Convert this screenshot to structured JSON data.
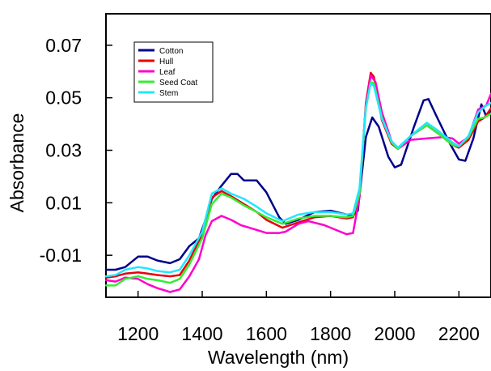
{
  "chart_data": {
    "type": "line",
    "xlabel": "Wavelength (nm)",
    "ylabel": "Absorbance",
    "xlim": [
      1100,
      2300
    ],
    "ylim": [
      -0.026,
      0.082
    ],
    "x_ticks": [
      1200,
      1400,
      1600,
      1800,
      2000,
      2200
    ],
    "x_tick_labels": [
      "1200",
      "1400",
      "1600",
      "1800",
      "2000",
      "2200"
    ],
    "y_ticks": [
      -0.01,
      0.01,
      0.03,
      0.05,
      0.07
    ],
    "y_tick_labels": [
      "-0.01",
      "0.01",
      "0.03",
      "0.05",
      "0.07"
    ],
    "grid": false,
    "legend_position": "top-left",
    "series": [
      {
        "name": "Cotton",
        "color": "#00008b",
        "points": [
          [
            1100,
            -0.0155
          ],
          [
            1130,
            -0.0155
          ],
          [
            1160,
            -0.0145
          ],
          [
            1200,
            -0.0105
          ],
          [
            1230,
            -0.0105
          ],
          [
            1260,
            -0.012
          ],
          [
            1300,
            -0.013
          ],
          [
            1330,
            -0.0115
          ],
          [
            1360,
            -0.0065
          ],
          [
            1390,
            -0.0035
          ],
          [
            1410,
            0.0035
          ],
          [
            1430,
            0.0115
          ],
          [
            1460,
            0.0165
          ],
          [
            1490,
            0.021
          ],
          [
            1510,
            0.021
          ],
          [
            1530,
            0.0185
          ],
          [
            1570,
            0.0185
          ],
          [
            1600,
            0.014
          ],
          [
            1640,
            0.0045
          ],
          [
            1660,
            0.002
          ],
          [
            1700,
            0.0035
          ],
          [
            1750,
            0.0065
          ],
          [
            1800,
            0.007
          ],
          [
            1850,
            0.0055
          ],
          [
            1870,
            0.005
          ],
          [
            1885,
            0.007
          ],
          [
            1895,
            0.018
          ],
          [
            1910,
            0.035
          ],
          [
            1930,
            0.0425
          ],
          [
            1950,
            0.039
          ],
          [
            1980,
            0.0275
          ],
          [
            2000,
            0.0235
          ],
          [
            2020,
            0.0245
          ],
          [
            2060,
            0.039
          ],
          [
            2090,
            0.049
          ],
          [
            2105,
            0.0495
          ],
          [
            2130,
            0.043
          ],
          [
            2170,
            0.033
          ],
          [
            2200,
            0.0265
          ],
          [
            2220,
            0.026
          ],
          [
            2245,
            0.0345
          ],
          [
            2270,
            0.0475
          ],
          [
            2285,
            0.043
          ],
          [
            2300,
            0.045
          ]
        ]
      },
      {
        "name": "Hull",
        "color": "#e8000b",
        "points": [
          [
            1100,
            -0.0185
          ],
          [
            1130,
            -0.018
          ],
          [
            1160,
            -0.017
          ],
          [
            1200,
            -0.0165
          ],
          [
            1230,
            -0.017
          ],
          [
            1260,
            -0.0175
          ],
          [
            1300,
            -0.018
          ],
          [
            1330,
            -0.0175
          ],
          [
            1360,
            -0.012
          ],
          [
            1400,
            -0.002
          ],
          [
            1430,
            0.012
          ],
          [
            1460,
            0.0145
          ],
          [
            1490,
            0.0125
          ],
          [
            1530,
            0.0095
          ],
          [
            1570,
            0.0065
          ],
          [
            1600,
            0.0035
          ],
          [
            1650,
            0.0005
          ],
          [
            1700,
            0.0025
          ],
          [
            1750,
            0.0045
          ],
          [
            1800,
            0.005
          ],
          [
            1850,
            0.004
          ],
          [
            1870,
            0.0045
          ],
          [
            1890,
            0.0125
          ],
          [
            1910,
            0.048
          ],
          [
            1925,
            0.0595
          ],
          [
            1935,
            0.058
          ],
          [
            1960,
            0.0415
          ],
          [
            1990,
            0.0325
          ],
          [
            2010,
            0.0305
          ],
          [
            2050,
            0.0355
          ],
          [
            2100,
            0.0395
          ],
          [
            2140,
            0.036
          ],
          [
            2180,
            0.032
          ],
          [
            2200,
            0.031
          ],
          [
            2230,
            0.034
          ],
          [
            2260,
            0.041
          ],
          [
            2280,
            0.0425
          ],
          [
            2300,
            0.046
          ]
        ]
      },
      {
        "name": "Leaf",
        "color": "#ff00cc",
        "points": [
          [
            1100,
            -0.0195
          ],
          [
            1130,
            -0.02
          ],
          [
            1160,
            -0.0185
          ],
          [
            1200,
            -0.019
          ],
          [
            1230,
            -0.021
          ],
          [
            1260,
            -0.0225
          ],
          [
            1300,
            -0.024
          ],
          [
            1330,
            -0.023
          ],
          [
            1360,
            -0.018
          ],
          [
            1390,
            -0.0115
          ],
          [
            1410,
            -0.0025
          ],
          [
            1430,
            0.003
          ],
          [
            1460,
            0.005
          ],
          [
            1490,
            0.0035
          ],
          [
            1520,
            0.0015
          ],
          [
            1560,
            0.0
          ],
          [
            1600,
            -0.0015
          ],
          [
            1640,
            -0.0015
          ],
          [
            1660,
            -0.001
          ],
          [
            1700,
            0.002
          ],
          [
            1730,
            0.003
          ],
          [
            1780,
            0.0015
          ],
          [
            1820,
            -0.0005
          ],
          [
            1850,
            -0.002
          ],
          [
            1870,
            -0.0015
          ],
          [
            1890,
            0.012
          ],
          [
            1910,
            0.047
          ],
          [
            1925,
            0.0585
          ],
          [
            1940,
            0.056
          ],
          [
            1960,
            0.0445
          ],
          [
            1990,
            0.0335
          ],
          [
            2010,
            0.0305
          ],
          [
            2050,
            0.034
          ],
          [
            2100,
            0.0345
          ],
          [
            2150,
            0.035
          ],
          [
            2180,
            0.0345
          ],
          [
            2200,
            0.0325
          ],
          [
            2230,
            0.035
          ],
          [
            2260,
            0.0455
          ],
          [
            2285,
            0.047
          ],
          [
            2300,
            0.0515
          ]
        ]
      },
      {
        "name": "Seed Coat",
        "color": "#33ee33",
        "points": [
          [
            1100,
            -0.0215
          ],
          [
            1130,
            -0.0215
          ],
          [
            1160,
            -0.019
          ],
          [
            1200,
            -0.018
          ],
          [
            1230,
            -0.019
          ],
          [
            1260,
            -0.0195
          ],
          [
            1300,
            -0.0205
          ],
          [
            1330,
            -0.019
          ],
          [
            1360,
            -0.0135
          ],
          [
            1400,
            -0.0035
          ],
          [
            1430,
            0.0095
          ],
          [
            1460,
            0.0135
          ],
          [
            1490,
            0.012
          ],
          [
            1530,
            0.009
          ],
          [
            1570,
            0.0065
          ],
          [
            1600,
            0.0045
          ],
          [
            1650,
            0.002
          ],
          [
            1700,
            0.004
          ],
          [
            1750,
            0.005
          ],
          [
            1800,
            0.005
          ],
          [
            1850,
            0.0045
          ],
          [
            1870,
            0.005
          ],
          [
            1890,
            0.0135
          ],
          [
            1910,
            0.046
          ],
          [
            1925,
            0.056
          ],
          [
            1935,
            0.0555
          ],
          [
            1960,
            0.0425
          ],
          [
            1990,
            0.033
          ],
          [
            2010,
            0.0305
          ],
          [
            2050,
            0.0355
          ],
          [
            2100,
            0.0395
          ],
          [
            2140,
            0.036
          ],
          [
            2180,
            0.032
          ],
          [
            2200,
            0.0315
          ],
          [
            2230,
            0.035
          ],
          [
            2260,
            0.042
          ],
          [
            2280,
            0.0425
          ],
          [
            2300,
            0.044
          ]
        ]
      },
      {
        "name": "Stem",
        "color": "#22e6ff",
        "points": [
          [
            1100,
            -0.018
          ],
          [
            1130,
            -0.0175
          ],
          [
            1160,
            -0.0155
          ],
          [
            1200,
            -0.0145
          ],
          [
            1230,
            -0.015
          ],
          [
            1260,
            -0.016
          ],
          [
            1300,
            -0.0165
          ],
          [
            1330,
            -0.0155
          ],
          [
            1360,
            -0.01
          ],
          [
            1400,
            -0.001
          ],
          [
            1430,
            0.0135
          ],
          [
            1460,
            0.0155
          ],
          [
            1490,
            0.0135
          ],
          [
            1530,
            0.0115
          ],
          [
            1570,
            0.0085
          ],
          [
            1600,
            0.006
          ],
          [
            1650,
            0.003
          ],
          [
            1700,
            0.0055
          ],
          [
            1750,
            0.0065
          ],
          [
            1800,
            0.0065
          ],
          [
            1850,
            0.0055
          ],
          [
            1870,
            0.006
          ],
          [
            1890,
            0.0155
          ],
          [
            1910,
            0.0465
          ],
          [
            1925,
            0.0555
          ],
          [
            1935,
            0.0545
          ],
          [
            1960,
            0.042
          ],
          [
            1990,
            0.0335
          ],
          [
            2010,
            0.031
          ],
          [
            2050,
            0.0355
          ],
          [
            2100,
            0.0405
          ],
          [
            2140,
            0.037
          ],
          [
            2180,
            0.033
          ],
          [
            2200,
            0.0315
          ],
          [
            2230,
            0.0355
          ],
          [
            2260,
            0.0445
          ],
          [
            2285,
            0.047
          ],
          [
            2300,
            0.048
          ]
        ]
      }
    ]
  }
}
